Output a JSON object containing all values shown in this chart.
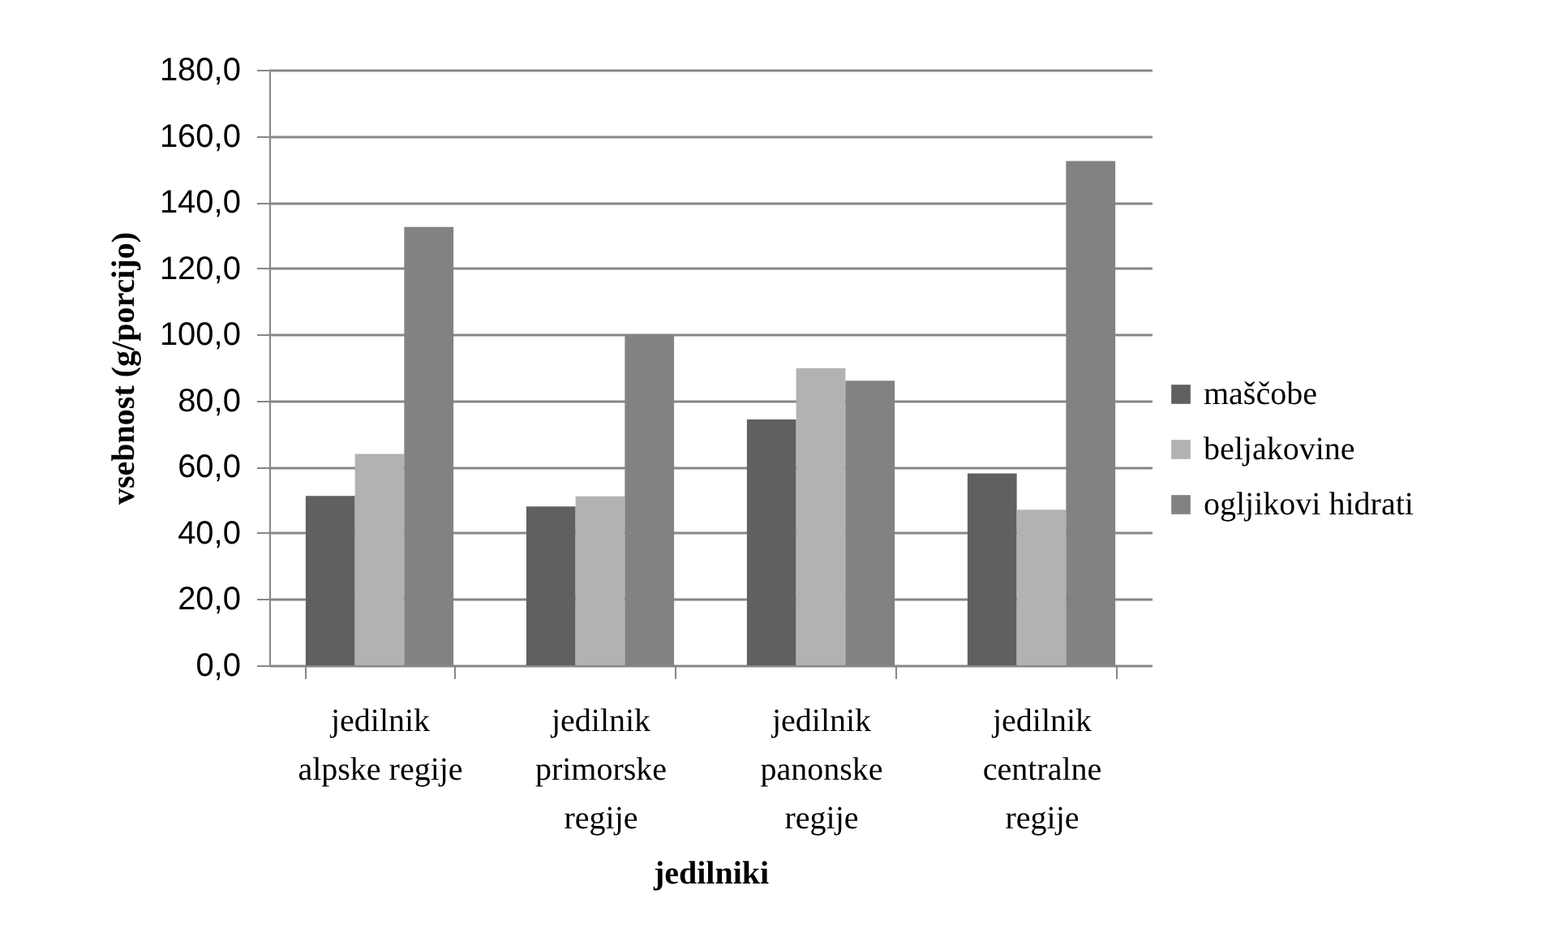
{
  "chart_data": {
    "type": "bar",
    "xlabel": "jedilniki",
    "ylabel": "vsebnost (g/porcijo)",
    "categories": [
      "jedilnik alpske regije",
      "jedilnik primorske regije",
      "jedilnik panonske regije",
      "jedilnik centralne regije"
    ],
    "series": [
      {
        "name": "maščobe",
        "color": "#606060",
        "values": [
          51.2,
          48.0,
          74.3,
          58.0
        ]
      },
      {
        "name": "beljakovine",
        "color": "#b2b2b2",
        "values": [
          63.9,
          51.1,
          89.8,
          47.0
        ]
      },
      {
        "name": "ogljikovi hidrati",
        "color": "#828282",
        "values": [
          132.5,
          100.0,
          86.0,
          152.4
        ]
      }
    ],
    "ylim": [
      0,
      180
    ],
    "yticks": [
      {
        "value": 0,
        "label": "0,0"
      },
      {
        "value": 20,
        "label": "20,0"
      },
      {
        "value": 40,
        "label": "40,0"
      },
      {
        "value": 60,
        "label": "60,0"
      },
      {
        "value": 80,
        "label": "80,0"
      },
      {
        "value": 100,
        "label": "100,0"
      },
      {
        "value": 120,
        "label": "120,0"
      },
      {
        "value": 140,
        "label": "140,0"
      },
      {
        "value": 160,
        "label": "160,0"
      },
      {
        "value": 180,
        "label": "180,0"
      }
    ],
    "grid": "y",
    "legend": "right"
  }
}
